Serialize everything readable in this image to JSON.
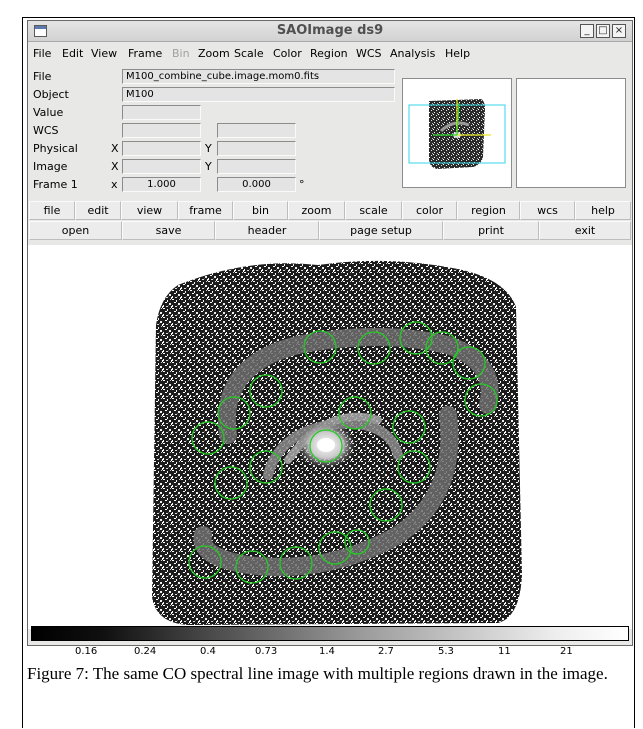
{
  "window": {
    "title": "SAOImage ds9",
    "controls": [
      "_",
      "□",
      "×"
    ]
  },
  "menubar": {
    "items": [
      "File",
      "Edit",
      "View",
      "Frame",
      "Bin",
      "Zoom",
      "Scale",
      "Color",
      "Region",
      "WCS",
      "Analysis",
      "Help"
    ],
    "disabled": [
      "Bin"
    ]
  },
  "info": {
    "file_label": "File",
    "file_value": "M100_combine_cube.image.mom0.fits",
    "object_label": "Object",
    "object_value": "M100",
    "value_label": "Value",
    "value_value": "",
    "wcs_label": "WCS",
    "physical_label": "Physical",
    "image_label": "Image",
    "frame_label": "Frame 1",
    "x_label": "X",
    "y_label": "Y",
    "frame_x_label": "x",
    "zoom_value": "1.000",
    "angle_value": "0.000",
    "degree_symbol": "°"
  },
  "buttonbar_top": [
    "file",
    "edit",
    "view",
    "frame",
    "bin",
    "zoom",
    "scale",
    "color",
    "region",
    "wcs",
    "help"
  ],
  "buttonbar_bottom": [
    "open",
    "save",
    "header",
    "page setup",
    "print",
    "exit"
  ],
  "colorbar": {
    "ticks": [
      "0.16",
      "0.24",
      "0.4",
      "0.73",
      "1.4",
      "2.7",
      "5.3",
      "11",
      "21"
    ]
  },
  "regions": {
    "color": "#22cc22",
    "count": 21
  },
  "caption": "Figure 7: The same CO spectral line image with multiple regions drawn in the image."
}
